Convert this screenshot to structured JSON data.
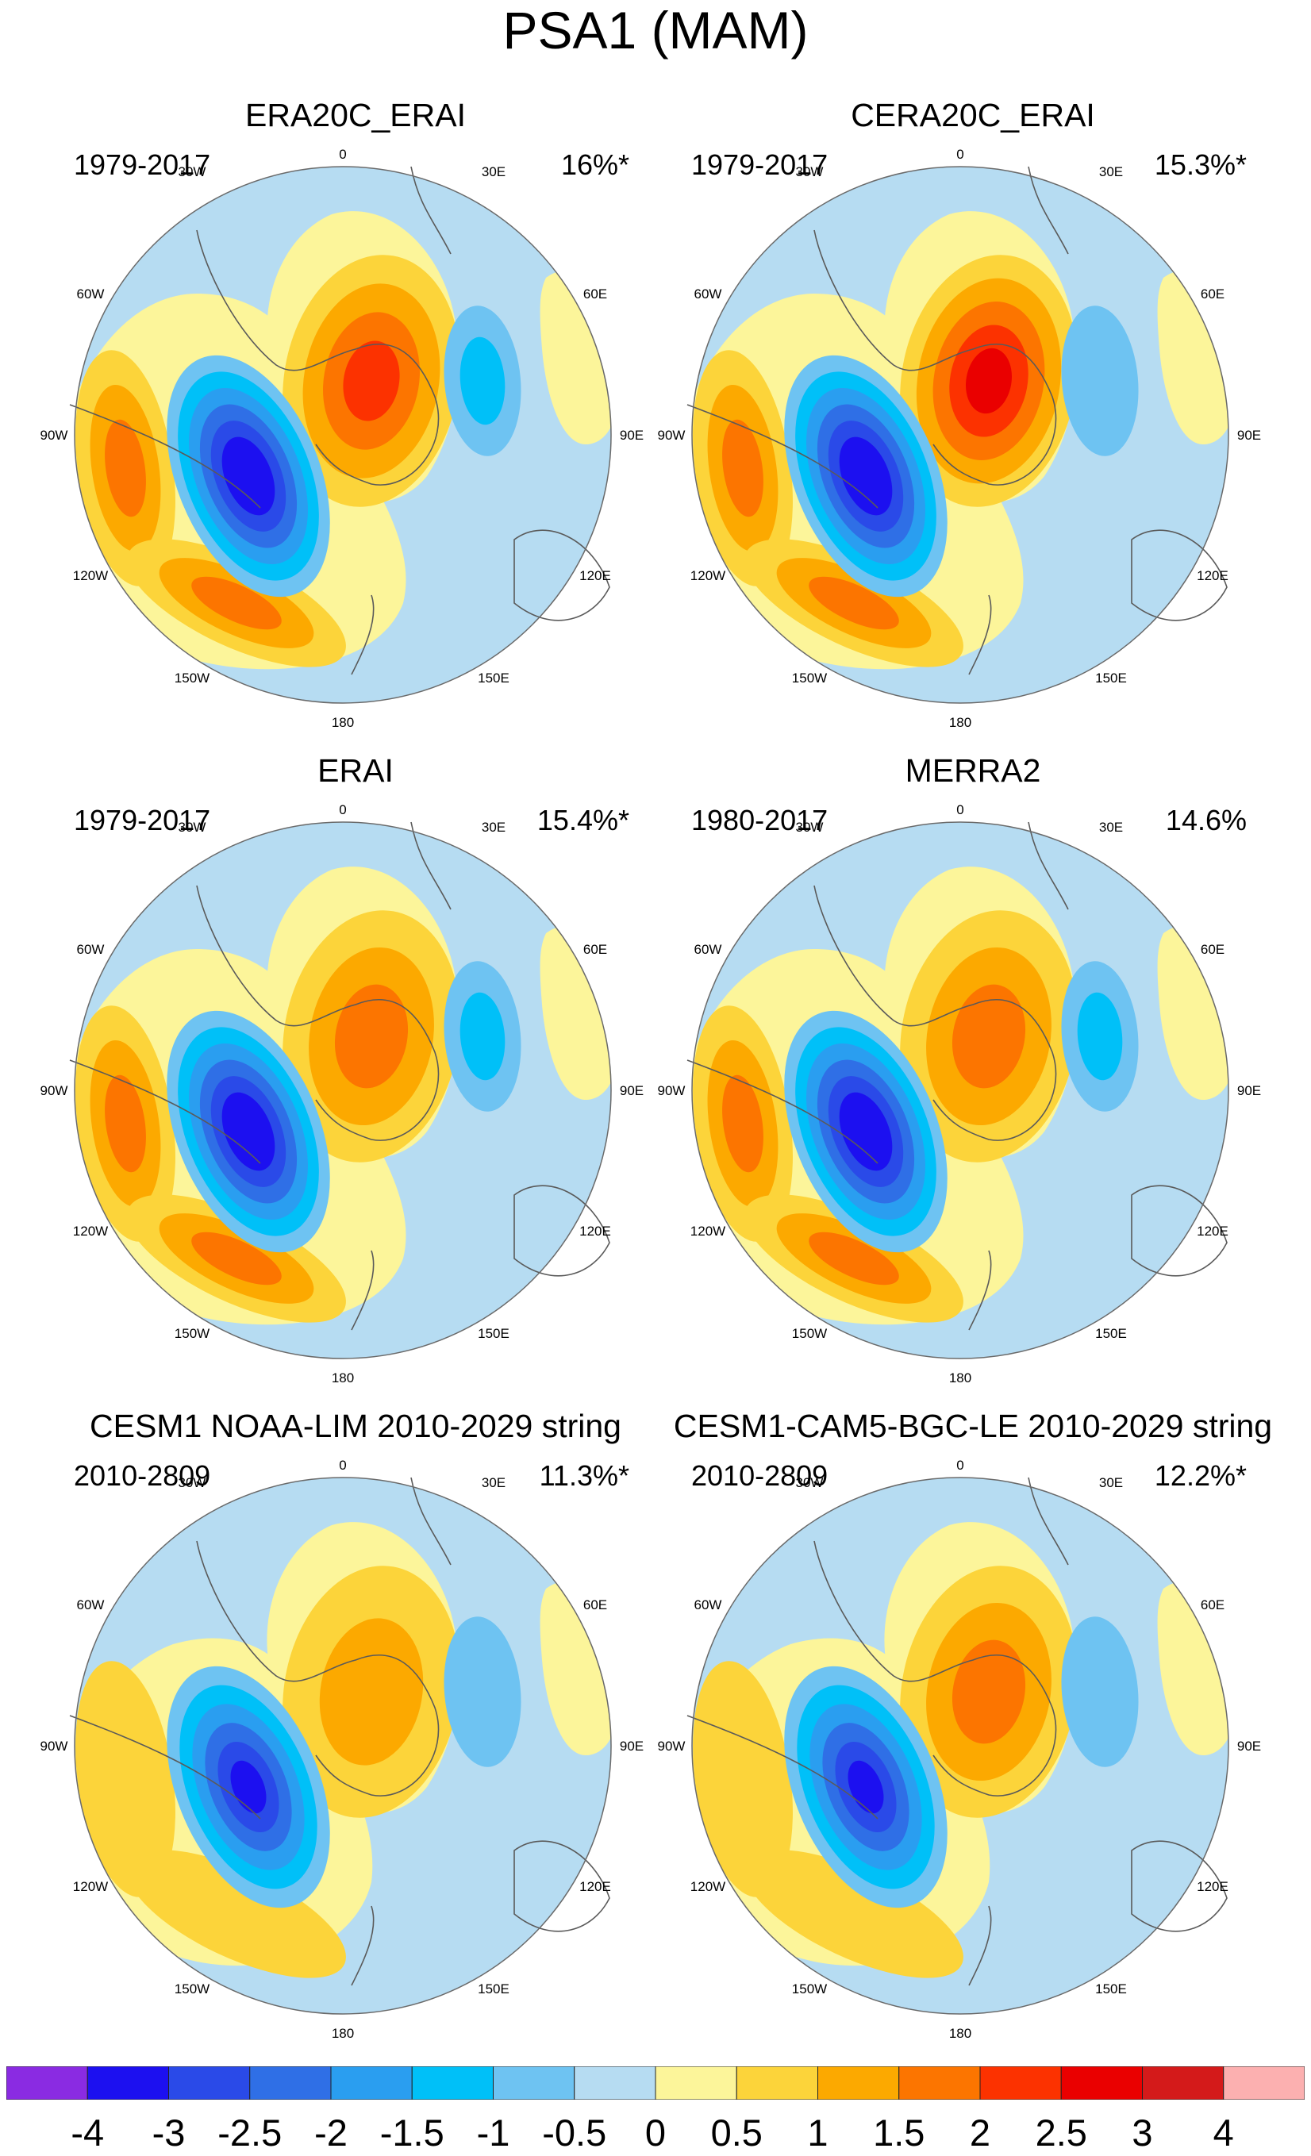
{
  "title": "PSA1 (MAM)",
  "colors": {
    "scale": [
      "#8a2be2",
      "#1c10f0",
      "#2a4ae8",
      "#2f6fe6",
      "#2a9ef0",
      "#00c0f8",
      "#6ec3f2",
      "#b6dcf2",
      "#fcf59a",
      "#fcd43a",
      "#fca900",
      "#fc7500",
      "#fc3200",
      "#ea0000",
      "#d41a1a",
      "#fcb0b0"
    ],
    "coast": "#5a5a5a",
    "rim": "#6a6a6a"
  },
  "colorbar": {
    "labels": [
      "-4",
      "-3",
      "-2.5",
      "-2",
      "-1.5",
      "-1",
      "-0.5",
      "0",
      "0.5",
      "1",
      "1.5",
      "2",
      "2.5",
      "3",
      "4"
    ]
  },
  "longitude_labels": {
    "top": "0",
    "bottom": "180",
    "upper_left": "30W",
    "upper_right": "30E",
    "left_high": "60W",
    "right_high": "60E",
    "left": "90W",
    "right": "90E",
    "left_low": "120W",
    "right_low": "120E",
    "lower_left": "150W",
    "lower_right": "150E"
  },
  "panels": [
    {
      "title": "ERA20C_ERAI",
      "period": "1979-2017",
      "variance": "16%*",
      "features": {
        "low": {
          "label": "PSA1 low",
          "strength": -3.5
        },
        "high": {
          "label": "Antarctic Peninsula high",
          "strength": 2.2
        },
        "sw_high": {
          "label": "90W high",
          "strength": 1.6
        },
        "s_high": {
          "label": "120W-150W high",
          "strength": 1.6
        },
        "e_low": {
          "label": "60E-90E low",
          "strength": -1.1
        }
      }
    },
    {
      "title": "CERA20C_ERAI",
      "period": "1979-2017",
      "variance": "15.3%*",
      "features": {
        "low": {
          "label": "PSA1 low",
          "strength": -3.5
        },
        "high": {
          "label": "Antarctic Peninsula high",
          "strength": 2.6
        },
        "sw_high": {
          "label": "90W high",
          "strength": 1.6
        },
        "s_high": {
          "label": "120W-150W high",
          "strength": 1.6
        },
        "e_low": {
          "label": "60E-90E low",
          "strength": -0.8
        }
      }
    },
    {
      "title": "ERAI",
      "period": "1979-2017",
      "variance": "15.4%*",
      "features": {
        "low": {
          "label": "PSA1 low",
          "strength": -3.5
        },
        "high": {
          "label": "Antarctic Peninsula high",
          "strength": 1.7
        },
        "sw_high": {
          "label": "90W high",
          "strength": 1.6
        },
        "s_high": {
          "label": "120W-150W high",
          "strength": 1.6
        },
        "e_low": {
          "label": "60E-90E low",
          "strength": -1.1
        }
      }
    },
    {
      "title": "MERRA2",
      "period": "1980-2017",
      "variance": "14.6%",
      "features": {
        "low": {
          "label": "PSA1 low",
          "strength": -3.5
        },
        "high": {
          "label": "Antarctic Peninsula high",
          "strength": 1.6
        },
        "sw_high": {
          "label": "90W high",
          "strength": 1.6
        },
        "s_high": {
          "label": "120W-150W high",
          "strength": 1.6
        },
        "e_low": {
          "label": "60E-90E low",
          "strength": -1.4
        }
      }
    },
    {
      "title": "CESM1 NOAA-LIM 2010-2029 string",
      "period": "2010-2809",
      "variance": "11.3%*",
      "features": {
        "low": {
          "label": "PSA1 low",
          "strength": -3.2
        },
        "high": {
          "label": "Antarctic Peninsula high",
          "strength": 1.2
        },
        "sw_high": {
          "label": "90W high",
          "strength": 0.6
        },
        "s_high": {
          "label": "120W-150W high",
          "strength": 0.6
        },
        "e_low": {
          "label": "60E-90E low",
          "strength": -0.6
        }
      }
    },
    {
      "title": "CESM1-CAM5-BGC-LE 2010-2029 string",
      "period": "2010-2809",
      "variance": "12.2%*",
      "features": {
        "low": {
          "label": "PSA1 low",
          "strength": -3.2
        },
        "high": {
          "label": "Antarctic Peninsula high",
          "strength": 1.6
        },
        "sw_high": {
          "label": "90W high",
          "strength": 0.6
        },
        "s_high": {
          "label": "120W-150W high",
          "strength": 0.6
        },
        "e_low": {
          "label": "60E-90E low",
          "strength": -0.6
        }
      }
    }
  ]
}
